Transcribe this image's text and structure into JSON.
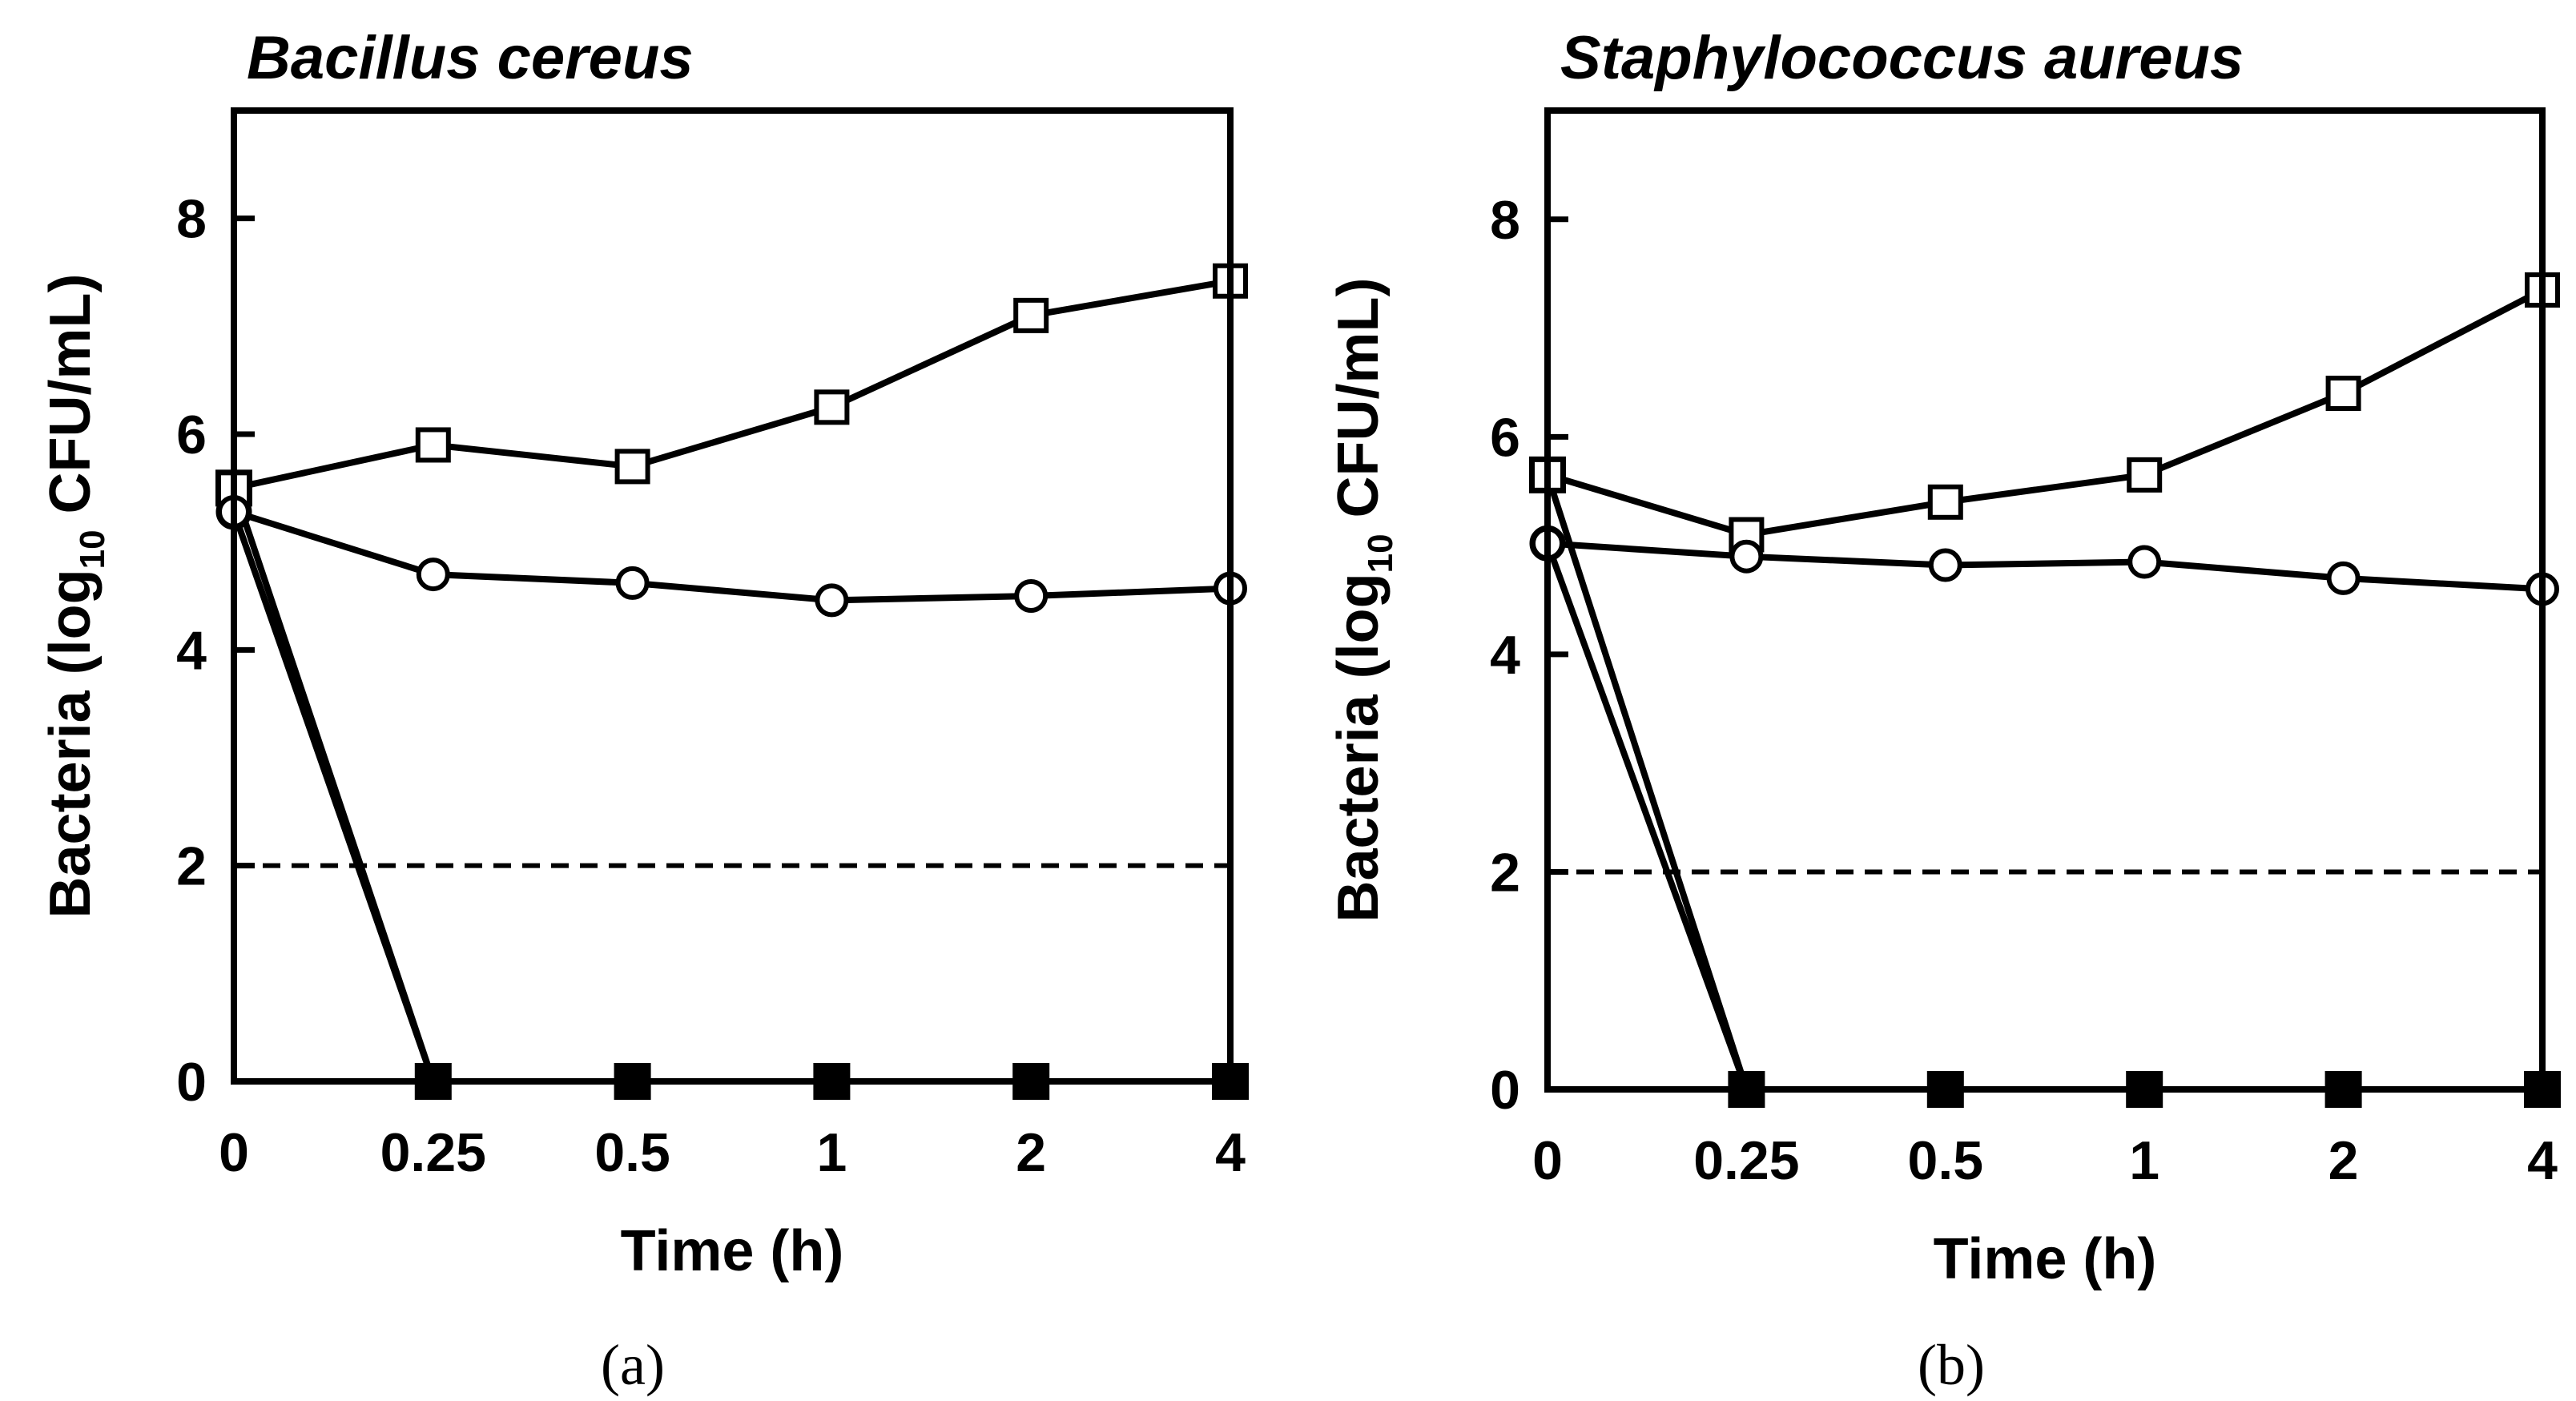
{
  "chart_data": [
    {
      "panel_label": "(a)",
      "title": "Bacillus cereus",
      "type": "line",
      "xlabel": "Time (h)",
      "ylabel": {
        "prefix": "Bacteria (log",
        "subscript": "10",
        "suffix": " CFU/mL)"
      },
      "categories": [
        "0",
        "0.25",
        "0.5",
        "1",
        "2",
        "4"
      ],
      "yticks": [
        0,
        2,
        4,
        6,
        8
      ],
      "ylim": [
        0,
        9
      ],
      "reference_line": {
        "y": 2,
        "style": "dashed"
      },
      "series": [
        {
          "marker": "open-square",
          "values": [
            5.5,
            5.9,
            5.7,
            6.25,
            7.1,
            7.42
          ]
        },
        {
          "marker": "open-circle",
          "values": [
            5.28,
            4.7,
            4.62,
            4.46,
            4.5,
            4.57
          ]
        },
        {
          "marker": "filled-square",
          "values": [
            5.5,
            0,
            0,
            0,
            0,
            0
          ]
        },
        {
          "marker": "filled-circle",
          "values": [
            5.28,
            0,
            0,
            0,
            0,
            0
          ]
        }
      ]
    },
    {
      "panel_label": "(b)",
      "title": "Staphylococcus aureus",
      "type": "line",
      "xlabel": "Time (h)",
      "ylabel": {
        "prefix": "Bacteria (log",
        "subscript": "10",
        "suffix": " CFU/mL)"
      },
      "categories": [
        "0",
        "0.25",
        "0.5",
        "1",
        "2",
        "4"
      ],
      "yticks": [
        0,
        2,
        4,
        6,
        8
      ],
      "ylim": [
        0,
        9
      ],
      "reference_line": {
        "y": 2,
        "style": "dashed"
      },
      "series": [
        {
          "marker": "open-square",
          "values": [
            5.65,
            5.1,
            5.4,
            5.65,
            6.4,
            7.35
          ]
        },
        {
          "marker": "open-circle",
          "values": [
            5.02,
            4.9,
            4.82,
            4.85,
            4.7,
            4.6
          ]
        },
        {
          "marker": "filled-square",
          "values": [
            5.65,
            0,
            0,
            0,
            0,
            0
          ]
        },
        {
          "marker": "filled-circle",
          "values": [
            5.02,
            0,
            0,
            0,
            0,
            0
          ]
        }
      ]
    }
  ]
}
